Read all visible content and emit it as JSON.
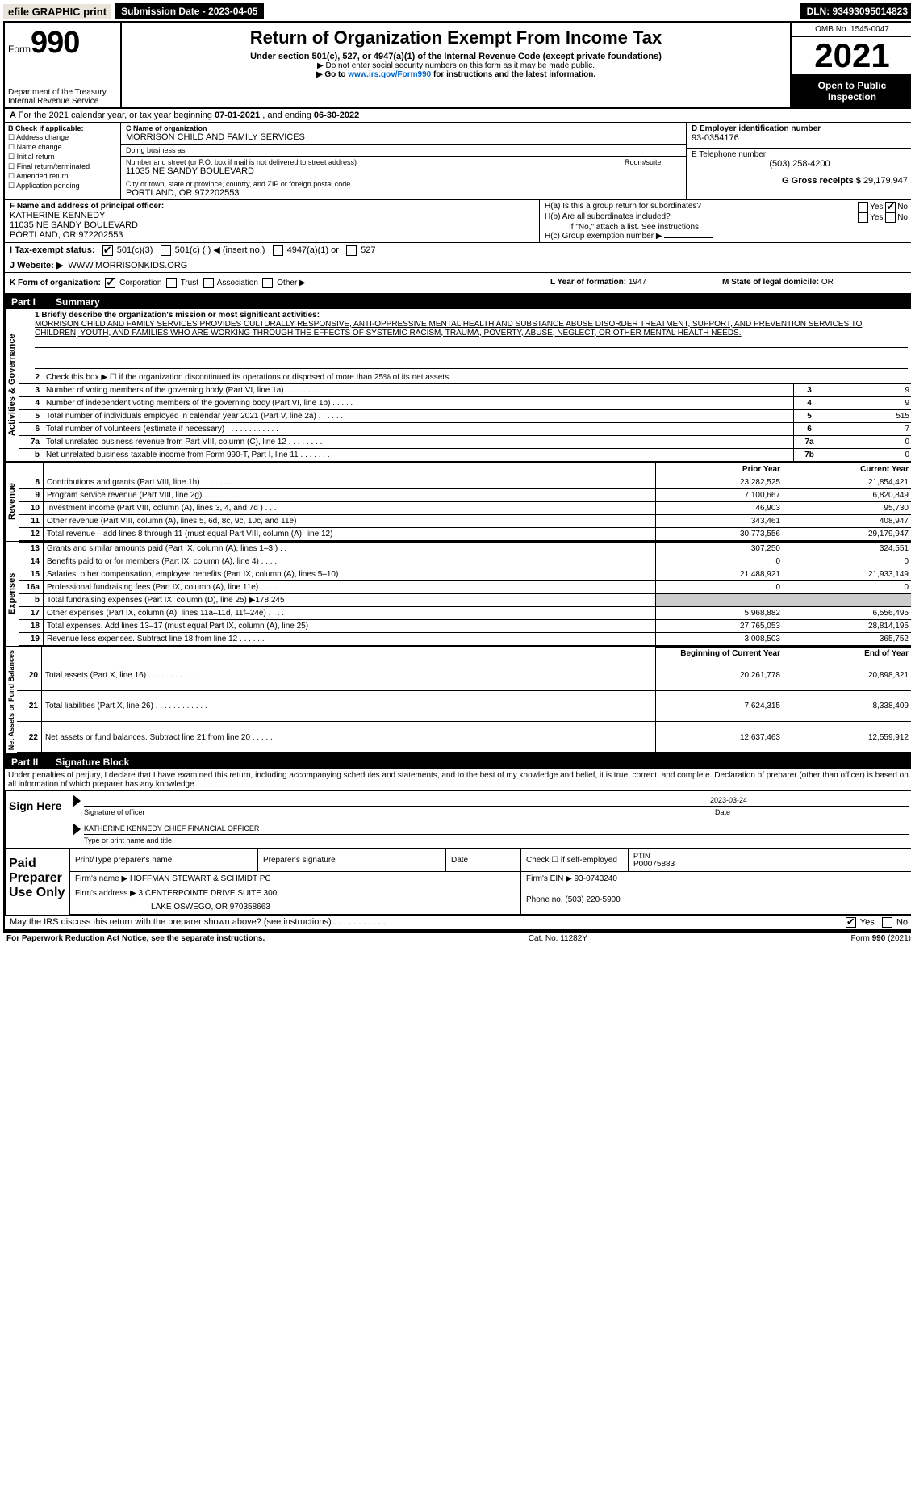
{
  "top_bar": {
    "efile": "efile GRAPHIC print",
    "submission": "Submission Date - 2023-04-05",
    "dln": "DLN: 93493095014823"
  },
  "header": {
    "form_label": "Form",
    "form_number": "990",
    "title": "Return of Organization Exempt From Income Tax",
    "subtitle": "Under section 501(c), 527, or 4947(a)(1) of the Internal Revenue Code (except private foundations)",
    "note1": "▶ Do not enter social security numbers on this form as it may be made public.",
    "note2_pre": "▶ Go to ",
    "note2_link": "www.irs.gov/Form990",
    "note2_post": " for instructions and the latest information.",
    "dept": "Department of the Treasury",
    "irs": "Internal Revenue Service",
    "omb": "OMB No. 1545-0047",
    "year": "2021",
    "open": "Open to Public Inspection"
  },
  "line_a": {
    "text_pre": "For the 2021 calendar year, or tax year beginning ",
    "begin": "07-01-2021",
    "mid": "   , and ending ",
    "end": "06-30-2022"
  },
  "box_b": {
    "title": "B Check if applicable:",
    "opts": [
      "Address change",
      "Name change",
      "Initial return",
      "Final return/terminated",
      "Amended return",
      "Application pending"
    ]
  },
  "box_c": {
    "label_name": "C Name of organization",
    "org_name": "MORRISON CHILD AND FAMILY SERVICES",
    "dba_label": "Doing business as",
    "addr_label": "Number and street (or P.O. box if mail is not delivered to street address)",
    "room_label": "Room/suite",
    "addr": "11035 NE SANDY BOULEVARD",
    "city_label": "City or town, state or province, country, and ZIP or foreign postal code",
    "city": "PORTLAND, OR  972202553"
  },
  "box_d": {
    "label": "D Employer identification number",
    "value": "93-0354176"
  },
  "box_e": {
    "label": "E Telephone number",
    "value": "(503) 258-4200"
  },
  "box_g": {
    "label": "G Gross receipts $ ",
    "value": "29,179,947"
  },
  "box_f": {
    "label": "F Name and address of principal officer:",
    "name": "KATHERINE KENNEDY",
    "addr1": "11035 NE SANDY BOULEVARD",
    "addr2": "PORTLAND, OR  972202553"
  },
  "box_h": {
    "a_label": "H(a)  Is this a group return for subordinates?",
    "b_label": "H(b)  Are all subordinates included?",
    "b_note": "If \"No,\" attach a list. See instructions.",
    "c_label": "H(c)  Group exemption number ▶",
    "yes": "Yes",
    "no": "No"
  },
  "line_i": {
    "label": "I   Tax-exempt status:",
    "o1": "501(c)(3)",
    "o2": "501(c) (   ) ◀ (insert no.)",
    "o3": "4947(a)(1) or",
    "o4": "527"
  },
  "line_j": {
    "label": "J   Website: ▶",
    "value": "WWW.MORRISONKIDS.ORG"
  },
  "line_k": {
    "label": "K Form of organization:",
    "o1": "Corporation",
    "o2": "Trust",
    "o3": "Association",
    "o4": "Other ▶",
    "l_label": "L Year of formation: ",
    "l_val": "1947",
    "m_label": "M State of legal domicile: ",
    "m_val": "OR"
  },
  "part1": {
    "num": "Part I",
    "title": "Summary"
  },
  "mission": {
    "label": "1   Briefly describe the organization's mission or most significant activities:",
    "text": "MORRISON CHILD AND FAMILY SERVICES PROVIDES CULTURALLY RESPONSIVE, ANTI-OPPRESSIVE MENTAL HEALTH AND SUBSTANCE ABUSE DISORDER TREATMENT, SUPPORT, AND PREVENTION SERVICES TO CHILDREN, YOUTH, AND FAMILIES WHO ARE WORKING THROUGH THE EFFECTS OF SYSTEMIC RACISM, TRAUMA, POVERTY, ABUSE, NEGLECT, OR OTHER MENTAL HEALTH NEEDS."
  },
  "governance": {
    "side": "Activities & Governance",
    "rows": [
      {
        "n": "2",
        "d": "Check this box ▶ ☐  if the organization discontinued its operations or disposed of more than 25% of its net assets.",
        "box": "",
        "v": ""
      },
      {
        "n": "3",
        "d": "Number of voting members of the governing body (Part VI, line 1a)   .    .    .    .    .    .    .    .",
        "box": "3",
        "v": "9"
      },
      {
        "n": "4",
        "d": "Number of independent voting members of the governing body (Part VI, line 1b)   .    .    .    .    .",
        "box": "4",
        "v": "9"
      },
      {
        "n": "5",
        "d": "Total number of individuals employed in calendar year 2021 (Part V, line 2a)   .    .    .    .    .    .",
        "box": "5",
        "v": "515"
      },
      {
        "n": "6",
        "d": "Total number of volunteers (estimate if necessary)   .    .    .    .    .    .    .    .    .    .    .    .",
        "box": "6",
        "v": "7"
      },
      {
        "n": "7a",
        "d": "Total unrelated business revenue from Part VIII, column (C), line 12   .    .    .    .    .    .    .    .",
        "box": "7a",
        "v": "0"
      },
      {
        "n": "b",
        "d": "Net unrelated business taxable income from Form 990-T, Part I, line 11   .    .    .    .    .    .    .",
        "box": "7b",
        "v": "0"
      }
    ]
  },
  "col_headers": {
    "prior": "Prior Year",
    "current": "Current Year",
    "begin": "Beginning of Current Year",
    "end": "End of Year"
  },
  "revenue": {
    "side": "Revenue",
    "rows": [
      {
        "n": "8",
        "d": "Contributions and grants (Part VIII, line 1h)   .    .    .    .    .    .    .    .",
        "p": "23,282,525",
        "c": "21,854,421"
      },
      {
        "n": "9",
        "d": "Program service revenue (Part VIII, line 2g)   .    .    .    .    .    .    .    .",
        "p": "7,100,667",
        "c": "6,820,849"
      },
      {
        "n": "10",
        "d": "Investment income (Part VIII, column (A), lines 3, 4, and 7d )   .    .    .",
        "p": "46,903",
        "c": "95,730"
      },
      {
        "n": "11",
        "d": "Other revenue (Part VIII, column (A), lines 5, 6d, 8c, 9c, 10c, and 11e)",
        "p": "343,461",
        "c": "408,947"
      },
      {
        "n": "12",
        "d": "Total revenue—add lines 8 through 11 (must equal Part VIII, column (A), line 12)",
        "p": "30,773,556",
        "c": "29,179,947"
      }
    ]
  },
  "expenses": {
    "side": "Expenses",
    "rows": [
      {
        "n": "13",
        "d": "Grants and similar amounts paid (Part IX, column (A), lines 1–3 )   .    .    .",
        "p": "307,250",
        "c": "324,551"
      },
      {
        "n": "14",
        "d": "Benefits paid to or for members (Part IX, column (A), line 4)   .    .    .    .",
        "p": "0",
        "c": "0"
      },
      {
        "n": "15",
        "d": "Salaries, other compensation, employee benefits (Part IX, column (A), lines 5–10)",
        "p": "21,488,921",
        "c": "21,933,149"
      },
      {
        "n": "16a",
        "d": "Professional fundraising fees (Part IX, column (A), line 11e)   .    .    .    .",
        "p": "0",
        "c": "0"
      },
      {
        "n": "b",
        "d": "Total fundraising expenses (Part IX, column (D), line 25) ▶178,245",
        "p": "",
        "c": "",
        "shade": true
      },
      {
        "n": "17",
        "d": "Other expenses (Part IX, column (A), lines 11a–11d, 11f–24e)   .    .    .    .",
        "p": "5,968,882",
        "c": "6,556,495"
      },
      {
        "n": "18",
        "d": "Total expenses. Add lines 13–17 (must equal Part IX, column (A), line 25)",
        "p": "27,765,053",
        "c": "28,814,195"
      },
      {
        "n": "19",
        "d": "Revenue less expenses. Subtract line 18 from line 12   .    .    .    .    .    .",
        "p": "3,008,503",
        "c": "365,752"
      }
    ]
  },
  "netassets": {
    "side": "Net Assets or Fund Balances",
    "rows": [
      {
        "n": "20",
        "d": "Total assets (Part X, line 16)   .    .    .    .    .    .    .    .    .    .    .    .    .",
        "p": "20,261,778",
        "c": "20,898,321"
      },
      {
        "n": "21",
        "d": "Total liabilities (Part X, line 26)   .    .    .    .    .    .    .    .    .    .    .    .",
        "p": "7,624,315",
        "c": "8,338,409"
      },
      {
        "n": "22",
        "d": "Net assets or fund balances. Subtract line 21 from line 20   .    .    .    .    .",
        "p": "12,637,463",
        "c": "12,559,912"
      }
    ]
  },
  "part2": {
    "num": "Part II",
    "title": "Signature Block"
  },
  "penalty": "Under penalties of perjury, I declare that I have examined this return, including accompanying schedules and statements, and to the best of my knowledge and belief, it is true, correct, and complete. Declaration of preparer (other than officer) is based on all information of which preparer has any knowledge.",
  "sign": {
    "label": "Sign Here",
    "sig_officer_label": "Signature of officer",
    "date_label": "Date",
    "date_val": "2023-03-24",
    "name_val": "KATHERINE KENNEDY  CHIEF FINANCIAL OFFICER",
    "name_label": "Type or print name and title"
  },
  "preparer": {
    "label": "Paid Preparer Use Only",
    "h_name": "Print/Type preparer's name",
    "h_sig": "Preparer's signature",
    "h_date": "Date",
    "h_check": "Check ☐ if self-employed",
    "h_ptin": "PTIN",
    "ptin_val": "P00075883",
    "firm_name_label": "Firm's name      ▶",
    "firm_name": "HOFFMAN STEWART & SCHMIDT PC",
    "firm_ein_label": "Firm's EIN ▶ ",
    "firm_ein": "93-0743240",
    "firm_addr_label": "Firm's address ▶",
    "firm_addr1": "3 CENTERPOINTE DRIVE SUITE 300",
    "firm_addr2": "LAKE OSWEGO, OR  970358663",
    "phone_label": "Phone no. ",
    "phone": "(503) 220-5900"
  },
  "may_irs": {
    "text": "May the IRS discuss this return with the preparer shown above? (see instructions)   .    .    .    .    .    .    .    .    .    .    .",
    "yes": "Yes",
    "no": "No"
  },
  "footer": {
    "left": "For Paperwork Reduction Act Notice, see the separate instructions.",
    "mid": "Cat. No. 11282Y",
    "right": "Form 990 (2021)"
  }
}
